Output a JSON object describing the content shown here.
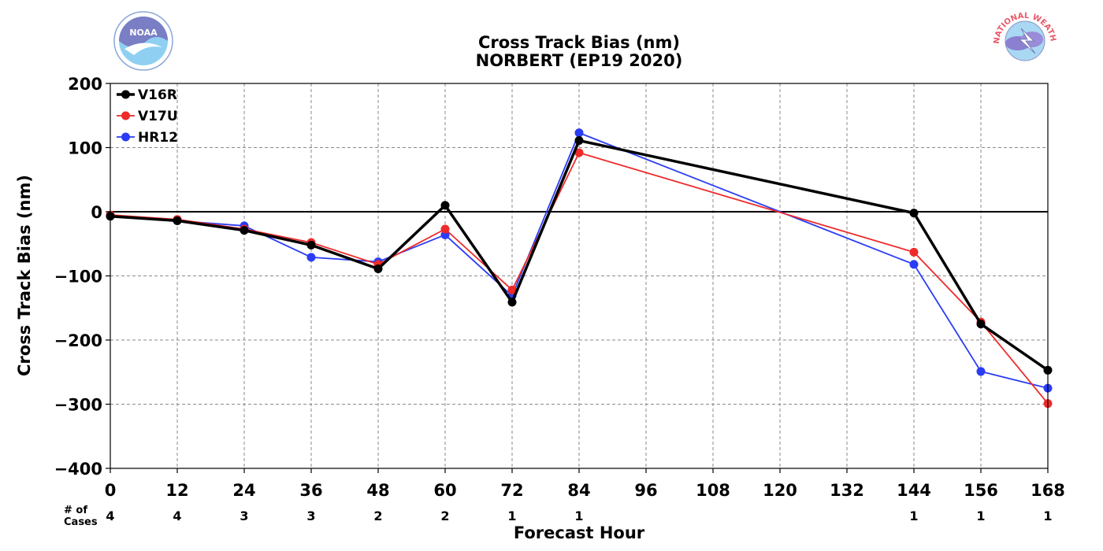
{
  "logos": {
    "left": {
      "text": "NOAA",
      "ring_text": "NATIONAL OCEANIC AND ATMOSPHERIC ADMINISTRATION · U.S. DEPARTMENT OF COMMERCE"
    },
    "right": {
      "ring_text": "NATIONAL WEATHER SERVICE"
    }
  },
  "chart_data": {
    "type": "line",
    "title": "Cross Track Bias (nm)",
    "subtitle": "NORBERT (EP19 2020)",
    "xlabel": "Forecast Hour",
    "ylabel": "Cross Track Bias (nm)",
    "xlim": [
      0,
      168
    ],
    "ylim": [
      -400,
      200
    ],
    "x_ticks": [
      0,
      12,
      24,
      36,
      48,
      60,
      72,
      84,
      96,
      108,
      120,
      132,
      144,
      156,
      168
    ],
    "x_tick_labels": [
      "0",
      "12",
      "24",
      "36",
      "48",
      "60",
      "72",
      "84",
      "96",
      "108",
      "120",
      "132",
      "144",
      "156",
      "168"
    ],
    "y_ticks": [
      -400,
      -300,
      -200,
      -100,
      0,
      100,
      200
    ],
    "y_tick_labels": [
      "−400",
      "−300",
      "−200",
      "−100",
      "0",
      "100",
      "200"
    ],
    "grid": true,
    "legend_position": "top-left",
    "cases_label_line1": "# of",
    "cases_label_line2": "Cases",
    "cases": [
      {
        "x": 0,
        "label": "4"
      },
      {
        "x": 12,
        "label": "4"
      },
      {
        "x": 24,
        "label": "3"
      },
      {
        "x": 36,
        "label": "3"
      },
      {
        "x": 48,
        "label": "2"
      },
      {
        "x": 60,
        "label": "2"
      },
      {
        "x": 72,
        "label": "1"
      },
      {
        "x": 84,
        "label": "1"
      },
      {
        "x": 144,
        "label": "1"
      },
      {
        "x": 156,
        "label": "1"
      },
      {
        "x": 168,
        "label": "1"
      }
    ],
    "series": [
      {
        "name": "V16R",
        "color": "#000000",
        "x": [
          0,
          12,
          24,
          36,
          48,
          60,
          72,
          84,
          144,
          156,
          168
        ],
        "values": [
          -7,
          -14,
          -29,
          -52,
          -89,
          10,
          -141,
          111,
          -2,
          -175,
          -247
        ]
      },
      {
        "name": "V17U",
        "color": "#ee2a2a",
        "x": [
          0,
          12,
          24,
          36,
          48,
          60,
          72,
          84,
          144,
          156,
          168
        ],
        "values": [
          -5,
          -12,
          -27,
          -48,
          -82,
          -27,
          -122,
          92,
          -63,
          -172,
          -299
        ]
      },
      {
        "name": "HR12",
        "color": "#2a3cf5",
        "x": [
          0,
          12,
          24,
          36,
          48,
          60,
          72,
          84,
          144,
          156,
          168
        ],
        "values": [
          -6,
          -14,
          -22,
          -71,
          -78,
          -36,
          -131,
          123,
          -82,
          -249,
          -275
        ]
      }
    ]
  }
}
